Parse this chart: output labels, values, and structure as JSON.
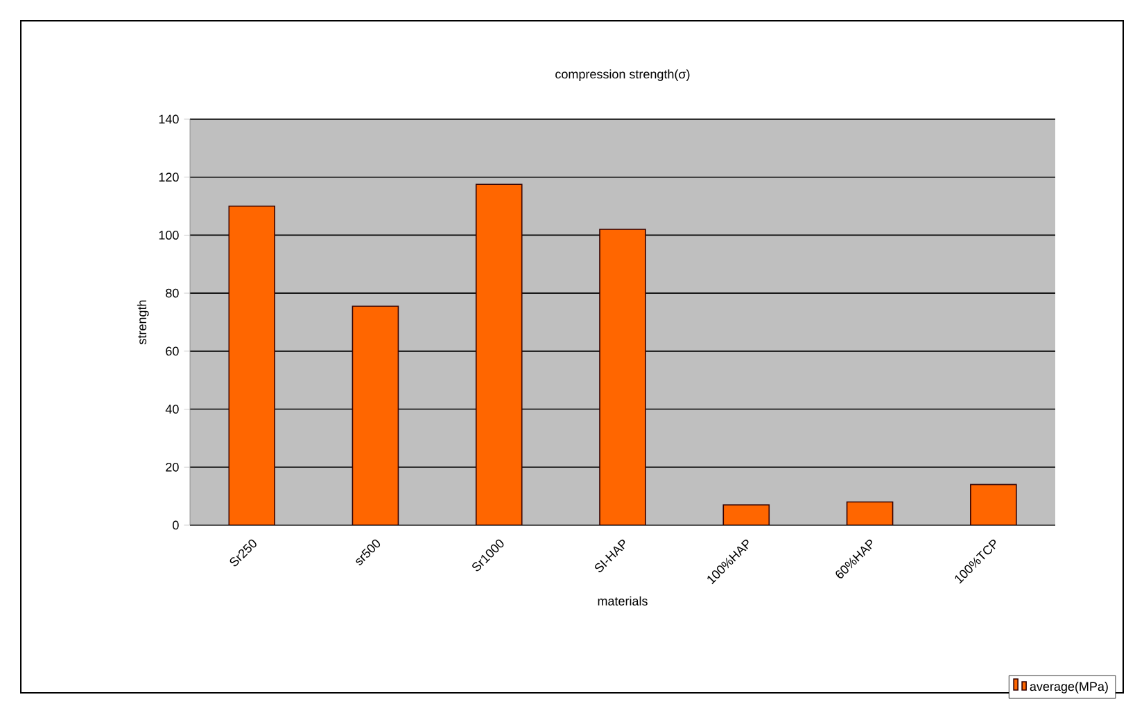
{
  "chart_data": {
    "type": "bar",
    "title": "compression strength(σ)",
    "xlabel": "materials",
    "ylabel": "strength",
    "categories": [
      "Sr250",
      "sr500",
      "Sr1000",
      "SI-HAP",
      "100%HAP",
      "60%HAP",
      "100%TCP"
    ],
    "series": [
      {
        "name": "average(MPa)",
        "color": "#ff6600",
        "values": [
          110,
          75.5,
          117.5,
          102,
          7,
          8,
          14
        ]
      }
    ],
    "ylim": [
      0,
      140
    ],
    "yticks": [
      0,
      20,
      40,
      60,
      80,
      100,
      120,
      140
    ],
    "grid": "y",
    "legend": "bottom right"
  }
}
